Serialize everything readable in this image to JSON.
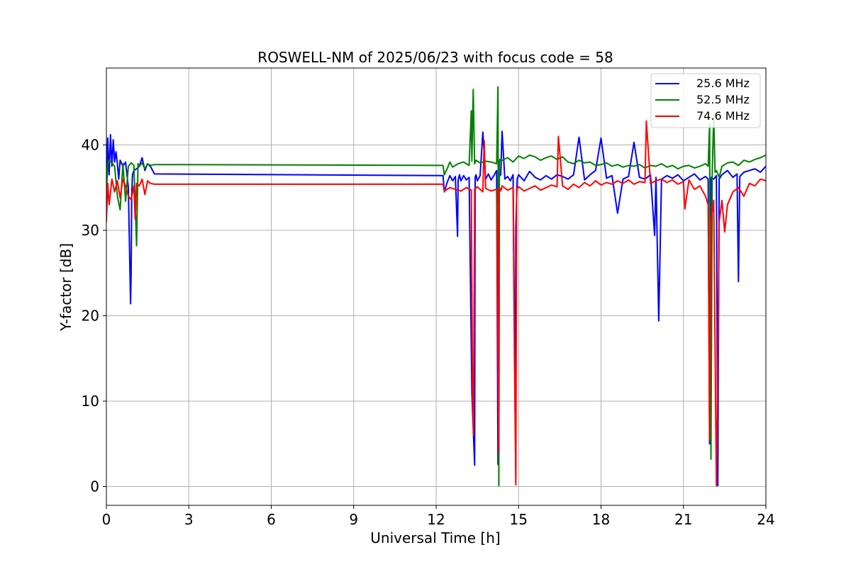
{
  "chart_data": {
    "type": "line",
    "title": "ROSWELL-NM of 2025/06/23 with focus code = 58",
    "xlabel": "Universal Time [h]",
    "ylabel": "Y-factor [dB]",
    "xlim": [
      0,
      24
    ],
    "ylim": [
      -2.2,
      49
    ],
    "xticks": [
      0,
      3,
      6,
      9,
      12,
      15,
      18,
      21,
      24
    ],
    "yticks": [
      0,
      10,
      20,
      30,
      40
    ],
    "grid": true,
    "legend_position": "top-right",
    "series": [
      {
        "name": "25.6 MHz",
        "color": "#0000ff",
        "x": [
          0,
          0.05,
          0.1,
          0.15,
          0.2,
          0.25,
          0.3,
          0.35,
          0.4,
          0.45,
          0.5,
          0.6,
          0.7,
          0.8,
          0.88,
          0.9,
          0.92,
          0.95,
          1.0,
          1.1,
          1.2,
          1.3,
          1.4,
          1.5,
          1.6,
          1.75,
          12.25,
          12.3,
          12.4,
          12.5,
          12.6,
          12.7,
          12.78,
          12.8,
          12.85,
          12.9,
          13.0,
          13.1,
          13.2,
          13.3,
          13.4,
          13.42,
          13.45,
          13.5,
          13.6,
          13.7,
          13.8,
          13.9,
          14.0,
          14.1,
          14.2,
          14.25,
          14.3,
          14.35,
          14.4,
          14.5,
          14.6,
          14.7,
          14.8,
          14.88,
          14.9,
          14.95,
          15.0,
          15.2,
          15.4,
          15.6,
          15.8,
          16.0,
          16.2,
          16.4,
          16.6,
          16.8,
          17.0,
          17.2,
          17.4,
          17.6,
          17.8,
          18.0,
          18.2,
          18.4,
          18.6,
          18.8,
          19.0,
          19.2,
          19.4,
          19.6,
          19.8,
          19.95,
          20.0,
          20.1,
          20.2,
          20.4,
          20.6,
          20.8,
          21.0,
          21.2,
          21.4,
          21.6,
          21.8,
          21.9,
          21.95,
          22.0,
          22.1,
          22.2,
          22.25,
          22.3,
          22.4,
          22.6,
          22.8,
          22.95,
          23.0,
          23.05,
          23.2,
          23.4,
          23.6,
          23.8,
          24.0
        ],
        "y": [
          35.5,
          40.8,
          36.5,
          41.2,
          37.5,
          40.6,
          38.0,
          39.2,
          37.8,
          36.0,
          38.2,
          37.5,
          38.0,
          35.0,
          21.4,
          24.8,
          34.0,
          36.5,
          37.0,
          37.2,
          37.5,
          38.5,
          37.0,
          37.8,
          37.5,
          36.6,
          36.4,
          34.5,
          35.6,
          36.4,
          35.8,
          36.3,
          29.3,
          35.9,
          36.5,
          35.8,
          36.4,
          35.9,
          36.2,
          11.0,
          2.5,
          36.2,
          36.5,
          35.8,
          36.4,
          41.5,
          36.0,
          36.6,
          35.9,
          36.4,
          37.0,
          2.6,
          36.3,
          36.5,
          41.6,
          36.0,
          36.3,
          35.8,
          36.5,
          7.5,
          30.4,
          36.0,
          36.5,
          35.8,
          36.9,
          36.2,
          35.9,
          36.4,
          36.0,
          36.5,
          36.3,
          36.0,
          36.5,
          40.9,
          35.9,
          36.5,
          37.0,
          40.8,
          36.1,
          36.4,
          32.0,
          36.0,
          36.3,
          40.3,
          36.2,
          36.0,
          36.5,
          29.4,
          36.2,
          19.4,
          36.0,
          36.4,
          36.1,
          36.5,
          35.8,
          36.2,
          36.6,
          35.9,
          36.3,
          36.0,
          5.0,
          36.2,
          36.0,
          36.4,
          0.1,
          36.0,
          36.5,
          37.0,
          36.2,
          36.6,
          24.0,
          36.3,
          36.8,
          37.0,
          37.2,
          36.8,
          37.5
        ]
      },
      {
        "name": "52.5 MHz",
        "color": "#008000",
        "x": [
          0,
          0.05,
          0.1,
          0.2,
          0.3,
          0.4,
          0.5,
          0.6,
          0.7,
          0.8,
          0.9,
          1.0,
          1.1,
          1.15,
          1.2,
          1.3,
          1.4,
          1.5,
          1.6,
          1.75,
          12.25,
          12.3,
          12.4,
          12.5,
          12.6,
          12.8,
          13.0,
          13.2,
          13.28,
          13.3,
          13.35,
          13.4,
          13.45,
          13.6,
          13.8,
          14.0,
          14.2,
          14.25,
          14.28,
          14.3,
          14.32,
          14.4,
          14.6,
          14.8,
          15.0,
          15.2,
          15.4,
          15.6,
          15.8,
          16.0,
          16.2,
          16.4,
          16.6,
          16.8,
          17.0,
          17.2,
          17.4,
          17.6,
          17.8,
          18.0,
          18.2,
          18.4,
          18.6,
          18.8,
          19.0,
          19.2,
          19.4,
          19.6,
          19.8,
          20.0,
          20.2,
          20.4,
          20.6,
          20.8,
          21.0,
          21.2,
          21.4,
          21.6,
          21.8,
          21.9,
          21.95,
          22.0,
          22.05,
          22.1,
          22.15,
          22.2,
          22.3,
          22.4,
          22.6,
          22.8,
          23.0,
          23.2,
          23.4,
          23.6,
          23.8,
          24.0
        ],
        "y": [
          34.5,
          37.5,
          38.2,
          37.9,
          37.5,
          34.0,
          32.4,
          37.8,
          33.4,
          37.5,
          37.9,
          37.6,
          28.2,
          37.8,
          37.5,
          37.9,
          37.2,
          37.8,
          37.6,
          37.7,
          37.6,
          36.5,
          37.2,
          38.0,
          37.4,
          37.8,
          38.0,
          37.6,
          44.0,
          38.1,
          46.5,
          37.8,
          38.2,
          37.9,
          38.1,
          38.0,
          37.8,
          46.8,
          0.1,
          38.0,
          38.3,
          38.2,
          38.5,
          38.0,
          38.7,
          38.4,
          38.8,
          38.6,
          38.2,
          38.5,
          38.7,
          38.3,
          38.6,
          38.0,
          37.8,
          38.2,
          37.9,
          38.0,
          37.6,
          37.7,
          37.9,
          37.5,
          37.7,
          37.4,
          37.6,
          37.5,
          37.7,
          37.3,
          37.6,
          37.5,
          37.8,
          37.4,
          37.6,
          37.2,
          37.5,
          37.6,
          37.3,
          37.5,
          37.8,
          37.5,
          42.5,
          3.2,
          37.0,
          43.5,
          36.8,
          37.0,
          36.2,
          37.5,
          37.9,
          38.0,
          37.6,
          38.2,
          38.0,
          38.3,
          38.5,
          38.8
        ]
      },
      {
        "name": "74.6 MHz",
        "color": "#ff0000",
        "x": [
          0,
          0.05,
          0.1,
          0.2,
          0.3,
          0.4,
          0.5,
          0.6,
          0.7,
          0.8,
          0.9,
          1.0,
          1.05,
          1.1,
          1.2,
          1.3,
          1.4,
          1.5,
          1.6,
          1.75,
          12.25,
          12.3,
          12.5,
          12.7,
          12.9,
          13.1,
          13.28,
          13.32,
          13.36,
          13.4,
          13.5,
          13.7,
          13.75,
          13.8,
          14.0,
          14.2,
          14.28,
          14.3,
          14.35,
          14.4,
          14.6,
          14.8,
          14.85,
          14.9,
          14.93,
          15.0,
          15.2,
          15.4,
          15.6,
          15.8,
          16.0,
          16.2,
          16.4,
          16.45,
          16.6,
          16.8,
          17.0,
          17.2,
          17.4,
          17.6,
          17.8,
          18.0,
          18.2,
          18.4,
          18.6,
          18.8,
          19.0,
          19.2,
          19.4,
          19.6,
          19.65,
          19.8,
          20.0,
          20.2,
          20.4,
          20.6,
          20.8,
          21.0,
          21.05,
          21.2,
          21.4,
          21.6,
          21.8,
          21.9,
          21.95,
          22.0,
          22.1,
          22.2,
          22.25,
          22.3,
          22.4,
          22.5,
          22.6,
          22.8,
          23.0,
          23.2,
          23.4,
          23.6,
          23.8,
          24.0
        ],
        "y": [
          31.0,
          35.5,
          33.0,
          36.0,
          34.5,
          35.8,
          33.8,
          36.0,
          35.2,
          34.0,
          33.6,
          35.2,
          31.3,
          35.5,
          35.2,
          36.0,
          34.2,
          35.8,
          35.5,
          35.4,
          35.4,
          34.6,
          35.0,
          34.8,
          34.6,
          35.0,
          34.7,
          12.0,
          6.0,
          34.8,
          35.1,
          34.5,
          40.5,
          34.9,
          34.6,
          34.8,
          4.0,
          35.0,
          34.6,
          35.2,
          34.7,
          35.0,
          15.6,
          0.2,
          34.8,
          35.1,
          34.6,
          34.9,
          35.2,
          34.7,
          35.0,
          35.3,
          35.1,
          41.0,
          35.2,
          34.8,
          35.4,
          35.0,
          35.6,
          35.2,
          35.8,
          35.3,
          35.6,
          35.4,
          35.8,
          35.5,
          35.9,
          35.4,
          35.7,
          35.6,
          42.8,
          35.5,
          35.8,
          36.0,
          35.6,
          35.9,
          35.4,
          35.7,
          32.5,
          35.9,
          34.8,
          35.2,
          34.0,
          33.0,
          5.5,
          31.0,
          33.5,
          0.1,
          12.5,
          31.0,
          33.5,
          29.8,
          33.0,
          34.5,
          35.0,
          34.0,
          35.5,
          35.2,
          36.0,
          35.8
        ]
      }
    ]
  }
}
